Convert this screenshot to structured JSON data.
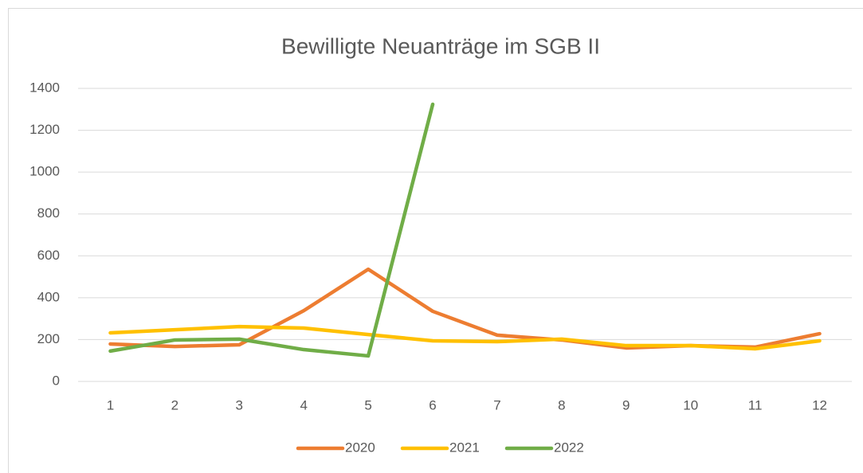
{
  "chart_data": {
    "type": "line",
    "title": "Bewilligte Neuanträge im SGB II",
    "categories": [
      "1",
      "2",
      "3",
      "4",
      "5",
      "6",
      "7",
      "8",
      "9",
      "10",
      "11",
      "12"
    ],
    "series": [
      {
        "name": "2020",
        "color": "#ed7d31",
        "values": [
          179,
          167,
          175,
          338,
          536,
          335,
          221,
          198,
          160,
          171,
          164,
          228
        ]
      },
      {
        "name": "2021",
        "color": "#ffc000",
        "values": [
          232,
          247,
          262,
          255,
          224,
          194,
          190,
          202,
          171,
          171,
          156,
          194
        ]
      },
      {
        "name": "2022",
        "color": "#70ad47",
        "values": [
          145,
          198,
          202,
          152,
          122,
          1324,
          null,
          null,
          null,
          null,
          null,
          null
        ]
      }
    ],
    "ylim": [
      0,
      1400
    ],
    "yticks": [
      0,
      200,
      400,
      600,
      800,
      1000,
      1200,
      1400
    ],
    "grid": true,
    "legend": "bottom"
  }
}
